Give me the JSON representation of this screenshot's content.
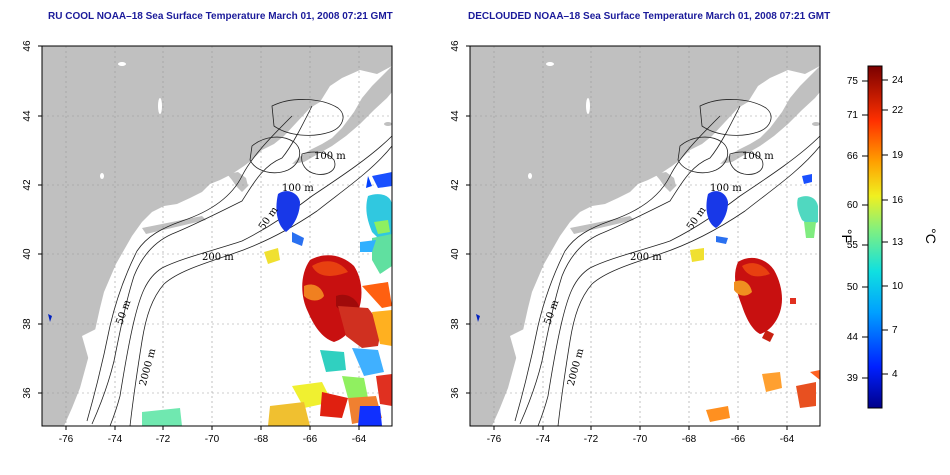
{
  "panels": [
    {
      "id": "left",
      "title": "RU COOL NOAA–18 Sea Surface Temperature March 01, 2008 07:21 GMT"
    },
    {
      "id": "right",
      "title": "DECLOUDED NOAA–18 Sea Surface Temperature March 01, 2008 07:21 GMT"
    }
  ],
  "axes": {
    "x_ticks": [
      "-76",
      "-74",
      "-72",
      "-70",
      "-68",
      "-66",
      "-64"
    ],
    "y_ticks": [
      "46",
      "44",
      "42",
      "40",
      "38",
      "36"
    ]
  },
  "contour_labels": [
    "100 m",
    "100 m",
    "50 m",
    "200 m",
    "50 m",
    "2000 m"
  ],
  "colorbar": {
    "fahrenheit_ticks": [
      "75",
      "71",
      "66",
      "60",
      "55",
      "50",
      "44",
      "39"
    ],
    "celsius_ticks": [
      "24",
      "22",
      "19",
      "16",
      "13",
      "10",
      "7",
      "4"
    ],
    "fahrenheit_unit": "°F",
    "celsius_unit": "°C"
  },
  "colors": {
    "land": "#c0c0c0",
    "ocean": "#ffffff",
    "title": "#1a1a9a",
    "warm_core": "#c81010",
    "cold_pool": "#1030e0"
  }
}
